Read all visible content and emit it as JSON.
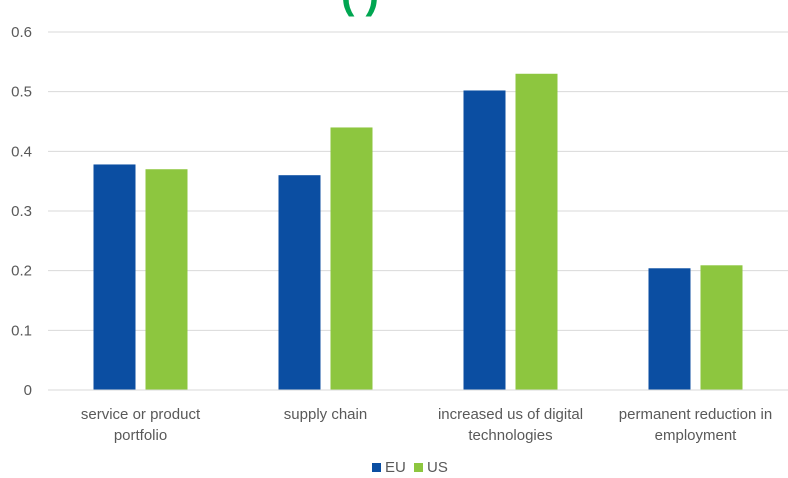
{
  "chart_data": {
    "type": "bar",
    "title_fragment": "(          )",
    "categories": [
      [
        "service or product",
        "portfolio"
      ],
      [
        "supply chain"
      ],
      [
        "increased us of digital",
        "technologies"
      ],
      [
        "permanent reduction in",
        "employment"
      ]
    ],
    "series": [
      {
        "name": "EU",
        "color": "#0b4ea2",
        "values": [
          0.378,
          0.36,
          0.502,
          0.204
        ]
      },
      {
        "name": "US",
        "color": "#8dc63f",
        "values": [
          0.37,
          0.44,
          0.53,
          0.209
        ]
      }
    ],
    "yticks": [
      "0",
      "0.1",
      "0.2",
      "0.3",
      "0.4",
      "0.5",
      "0.6"
    ],
    "ylim": [
      0,
      0.6
    ],
    "grid": true,
    "legend_position": "bottom"
  }
}
